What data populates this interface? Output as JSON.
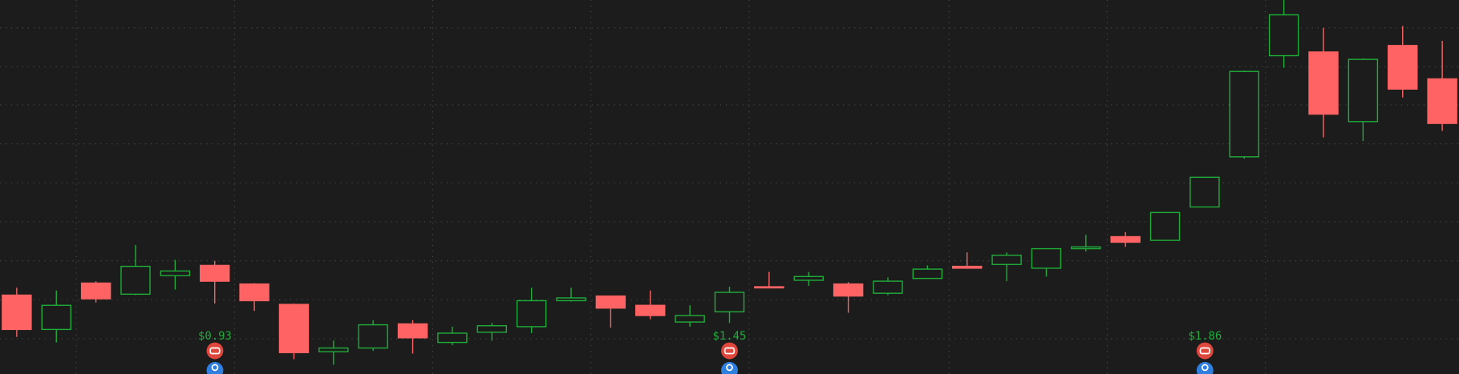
{
  "chart_data": {
    "type": "candlestick",
    "categories": [
      null,
      null,
      null,
      null,
      null,
      null,
      null,
      null,
      null,
      null,
      null,
      null,
      null,
      null,
      null,
      null,
      null,
      null,
      null,
      null,
      null,
      null,
      null,
      null,
      null,
      null,
      null,
      null,
      null,
      null,
      null,
      null,
      null,
      null,
      null,
      null,
      null
    ],
    "open": [
      85,
      48,
      98,
      86,
      106,
      117,
      97,
      75,
      24,
      28,
      54,
      34,
      45,
      51,
      79,
      84,
      74,
      56,
      67,
      94,
      101,
      97,
      87,
      103,
      116,
      118,
      114,
      135,
      148,
      144,
      180,
      234,
      343,
      347,
      272,
      354,
      318
    ],
    "high": [
      93,
      90,
      100,
      139,
      123,
      122,
      98,
      76,
      36,
      58,
      58,
      51,
      55,
      93,
      93,
      84,
      90,
      74,
      94,
      110,
      110,
      99,
      104,
      117,
      131,
      131,
      135,
      150,
      153,
      174,
      212,
      327,
      403,
      373,
      340,
      375,
      359
    ],
    "low": [
      40,
      34,
      77,
      85,
      91,
      76,
      68,
      16,
      10,
      25,
      22,
      31,
      36,
      44,
      78,
      50,
      59,
      51,
      55,
      93,
      95,
      66,
      85,
      103,
      114,
      100,
      105,
      132,
      137,
      144,
      180,
      232,
      330,
      255,
      251,
      298,
      262
    ],
    "close": [
      48,
      74,
      81,
      116,
      111,
      100,
      79,
      23,
      28,
      53,
      39,
      44,
      52,
      79,
      82,
      71,
      63,
      63,
      88,
      93,
      105,
      84,
      100,
      113,
      114,
      128,
      135,
      137,
      142,
      174,
      212,
      326,
      387,
      280,
      339,
      307,
      270
    ],
    "up_color": "#1fae3a",
    "down_color": "#ff6363",
    "ylim": [
      0,
      403
    ],
    "annotations": [
      "$0.93",
      "$1.45",
      "$1.86"
    ]
  }
}
